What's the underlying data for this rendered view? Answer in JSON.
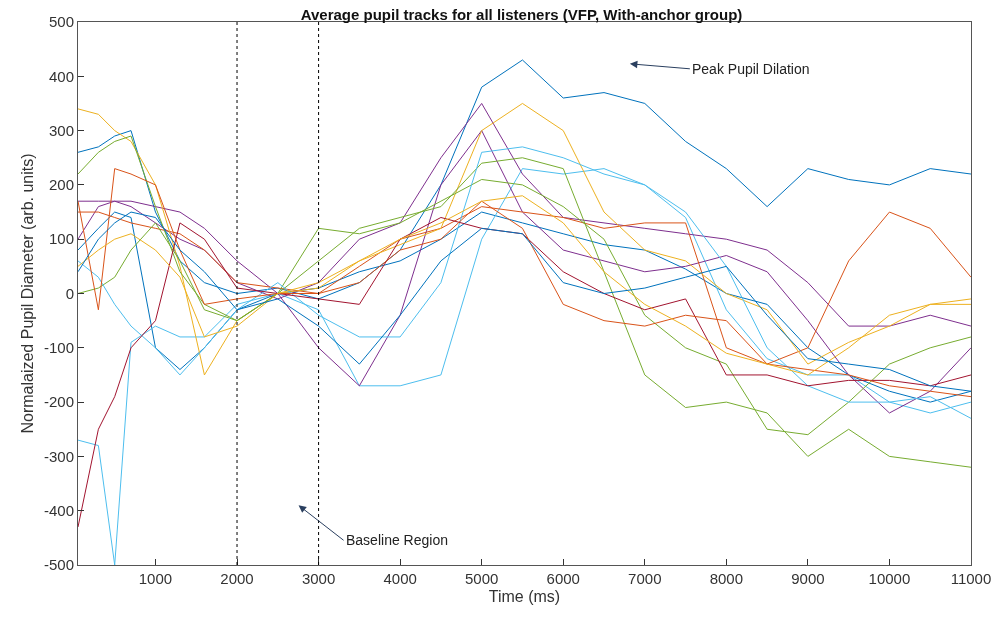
{
  "chart_data": {
    "type": "line",
    "title": "Average pupil tracks for all listeners (VFP, With-anchor group)",
    "xlabel": "Time (ms)",
    "ylabel": "Normalaized Pupil Diameter (arb. units)",
    "x": [
      50,
      300,
      500,
      700,
      1000,
      1300,
      1600,
      2000,
      2500,
      3000,
      3500,
      4000,
      4500,
      5000,
      5500,
      6000,
      6500,
      7000,
      7500,
      8000,
      8500,
      9000,
      9500,
      10000,
      10500,
      11000
    ],
    "series": [
      {
        "color": "#0072bd",
        "values": [
          260,
          270,
          290,
          300,
          150,
          60,
          20,
          0,
          10,
          -10,
          20,
          80,
          200,
          380,
          430,
          360,
          370,
          350,
          280,
          230,
          160,
          230,
          210,
          200,
          230,
          220
        ]
      },
      {
        "color": "#0072bd",
        "values": [
          80,
          120,
          150,
          140,
          -100,
          -140,
          -100,
          -30,
          0,
          10,
          40,
          60,
          100,
          150,
          130,
          110,
          90,
          80,
          45,
          0,
          -20,
          -100,
          -150,
          -180,
          -200,
          -180
        ]
      },
      {
        "color": "#4dbeee",
        "values": [
          -270,
          -280,
          -500,
          -90,
          -60,
          -80,
          -80,
          -20,
          0,
          -30,
          -170,
          -170,
          -150,
          100,
          230,
          220,
          230,
          200,
          140,
          -30,
          -120,
          -150,
          -150,
          -200,
          -220,
          -200
        ]
      },
      {
        "color": "#7e2f8e",
        "values": [
          170,
          170,
          170,
          170,
          160,
          150,
          120,
          60,
          0,
          -100,
          -170,
          -40,
          200,
          300,
          150,
          80,
          60,
          40,
          50,
          70,
          40,
          -50,
          -150,
          -220,
          -180,
          -100
        ]
      },
      {
        "color": "#7e2f8e",
        "values": [
          100,
          160,
          170,
          160,
          130,
          100,
          80,
          20,
          -10,
          20,
          100,
          130,
          250,
          350,
          220,
          140,
          130,
          120,
          110,
          100,
          80,
          20,
          -60,
          -60,
          -40,
          -60
        ]
      },
      {
        "color": "#d95319",
        "values": [
          150,
          150,
          140,
          130,
          120,
          110,
          80,
          20,
          10,
          0,
          50,
          100,
          120,
          160,
          150,
          140,
          120,
          130,
          130,
          -100,
          -130,
          -100,
          60,
          150,
          120,
          30
        ]
      },
      {
        "color": "#edb120",
        "values": [
          340,
          330,
          300,
          280,
          200,
          50,
          -150,
          -50,
          0,
          10,
          60,
          90,
          120,
          300,
          350,
          300,
          150,
          80,
          60,
          0,
          -30,
          -130,
          -90,
          -60,
          -20,
          -10
        ]
      },
      {
        "color": "#77ac30",
        "values": [
          220,
          260,
          280,
          290,
          160,
          40,
          -20,
          -50,
          0,
          60,
          120,
          140,
          160,
          240,
          250,
          230,
          40,
          -150,
          -210,
          -200,
          -220,
          -300,
          -250,
          -300,
          -310,
          -320
        ]
      },
      {
        "color": "#77ac30",
        "values": [
          0,
          10,
          30,
          80,
          130,
          60,
          -30,
          -50,
          0,
          120,
          110,
          130,
          170,
          210,
          200,
          160,
          100,
          -40,
          -100,
          -130,
          -250,
          -260,
          -200,
          -130,
          -100,
          -80
        ]
      },
      {
        "color": "#4dbeee",
        "values": [
          60,
          30,
          -20,
          -60,
          -100,
          -150,
          -100,
          -30,
          20,
          -40,
          -80,
          -80,
          20,
          260,
          270,
          250,
          220,
          200,
          150,
          50,
          -100,
          -170,
          -200,
          -200,
          -190,
          -230
        ]
      },
      {
        "color": "#a2142f",
        "values": [
          -430,
          -250,
          -190,
          -100,
          -50,
          130,
          100,
          10,
          0,
          -10,
          -20,
          100,
          140,
          120,
          110,
          40,
          0,
          -30,
          -10,
          -150,
          -150,
          -170,
          -160,
          -160,
          -170,
          -150
        ]
      },
      {
        "color": "#d95319",
        "values": [
          170,
          -30,
          230,
          220,
          200,
          80,
          -20,
          -10,
          0,
          0,
          20,
          80,
          100,
          170,
          120,
          -20,
          -50,
          -60,
          -40,
          -50,
          -130,
          -140,
          -150,
          -170,
          -180,
          -190
        ]
      },
      {
        "color": "#edb120",
        "values": [
          50,
          80,
          100,
          110,
          80,
          30,
          -80,
          -60,
          0,
          20,
          60,
          100,
          130,
          170,
          180,
          130,
          40,
          -20,
          -60,
          -110,
          -130,
          -150,
          -100,
          -40,
          -20,
          -20
        ]
      },
      {
        "color": "#0072bd",
        "values": [
          40,
          100,
          130,
          150,
          140,
          80,
          40,
          -30,
          -10,
          -60,
          -130,
          -40,
          60,
          120,
          110,
          20,
          0,
          10,
          30,
          50,
          -40,
          -120,
          -130,
          -140,
          -170,
          -180
        ]
      }
    ],
    "xlim": [
      50,
      11000
    ],
    "xticks": [
      1000,
      2000,
      3000,
      4000,
      5000,
      6000,
      7000,
      8000,
      9000,
      10000,
      11000
    ],
    "ylim": [
      -500,
      500
    ],
    "yticks": [
      -500,
      -400,
      -300,
      -200,
      -100,
      0,
      100,
      200,
      300,
      400,
      500
    ],
    "ref_lines": [
      {
        "axis": "x",
        "value": 2000,
        "color": "#000000",
        "line_style": "dotted"
      },
      {
        "axis": "x",
        "value": 3000,
        "color": "#000000",
        "line_style": "dotted"
      }
    ],
    "annotations": [
      "Peak Pupil Dilation",
      "Baseline Region"
    ]
  }
}
